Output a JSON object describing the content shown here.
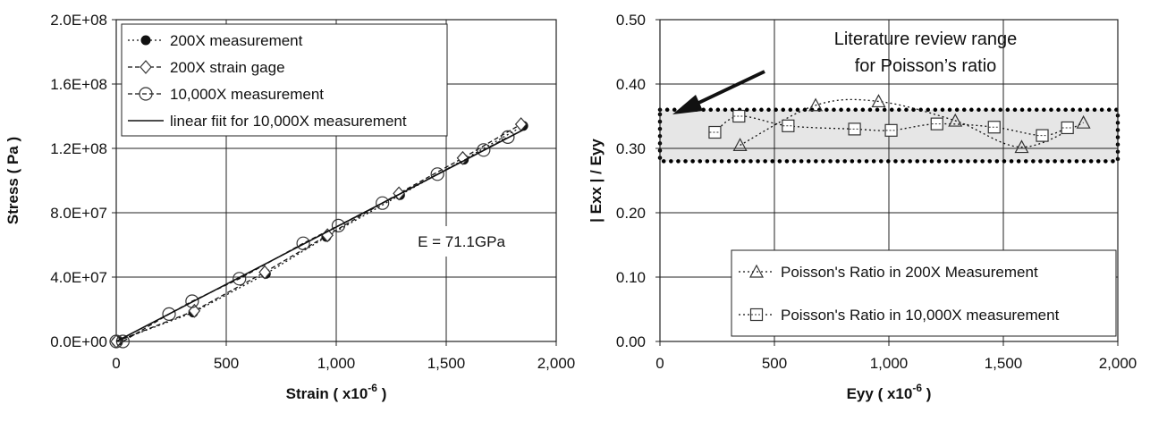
{
  "chart_data": [
    {
      "type": "scatter",
      "xlabel": "Strain ( x10",
      "xlabel_sup": "-6",
      "xlabel_tail": " )",
      "ylabel": "Stress ( Pa )",
      "xlim": [
        0,
        2000
      ],
      "ylim": [
        0,
        200000000
      ],
      "x_ticks": [
        0,
        500,
        1000,
        1500,
        2000
      ],
      "x_tick_labels": [
        "0",
        "500",
        "1,000",
        "1,500",
        "2,000"
      ],
      "y_ticks": [
        0,
        40000000,
        80000000,
        120000000,
        160000000,
        200000000
      ],
      "y_tick_labels": [
        "0.0E+00",
        "4.0E+07",
        "8.0E+07",
        "1.2E+08",
        "1.6E+08",
        "2.0E+08"
      ],
      "grid": true,
      "legend_position": "top-left",
      "annotation": "E = 71.1GPa",
      "series": [
        {
          "name": "200X measurement",
          "marker": "filled-circle",
          "line": "dotted",
          "x": [
            0,
            10,
            350,
            680,
            955,
            1290,
            1580,
            1850
          ],
          "y": [
            0,
            500000,
            18000000,
            42000000,
            65000000,
            91000000,
            113000000,
            134000000
          ]
        },
        {
          "name": "200X strain gage",
          "marker": "diamond",
          "line": "dashed",
          "x": [
            0,
            355,
            675,
            960,
            1285,
            1575,
            1840
          ],
          "y": [
            0,
            19000000,
            43000000,
            66000000,
            92000000,
            114000000,
            135000000
          ]
        },
        {
          "name": "10,000X measurement",
          "marker": "open-circle",
          "line": "dashed",
          "x": [
            0,
            30,
            240,
            345,
            560,
            850,
            1010,
            1210,
            1460,
            1670,
            1780
          ],
          "y": [
            0,
            0,
            17000000,
            25000000,
            39000000,
            61000000,
            72000000,
            86000000,
            104000000,
            119000000,
            127000000
          ]
        },
        {
          "name": "linear fiit for 10,000X measurement",
          "marker": "none",
          "line": "solid",
          "x": [
            0,
            1850
          ],
          "y": [
            0,
            131535000
          ]
        }
      ]
    },
    {
      "type": "scatter",
      "xlabel": "Eyy ( x10",
      "xlabel_sup": "-6",
      "xlabel_tail": " )",
      "ylabel": "| Exx | / Eyy",
      "xlim": [
        0,
        2000
      ],
      "ylim": [
        0,
        0.5
      ],
      "x_ticks": [
        0,
        500,
        1000,
        1500,
        2000
      ],
      "x_tick_labels": [
        "0",
        "500",
        "1,000",
        "1,500",
        "2,000"
      ],
      "y_ticks": [
        0,
        0.1,
        0.2,
        0.3,
        0.4,
        0.5
      ],
      "y_tick_labels": [
        "0.00",
        "0.10",
        "0.20",
        "0.30",
        "0.40",
        "0.50"
      ],
      "grid": true,
      "legend_position": "bottom-right",
      "band": {
        "from": 0.28,
        "to": 0.36,
        "label_lines": [
          "Literature review range",
          "for Poisson’s ratio"
        ]
      },
      "series": [
        {
          "name": "Poisson's Ratio in 200X Measurement",
          "marker": "triangle",
          "line": "dotted-smooth",
          "x": [
            350,
            680,
            955,
            1290,
            1580,
            1850
          ],
          "y": [
            0.305,
            0.367,
            0.373,
            0.343,
            0.302,
            0.34
          ]
        },
        {
          "name": "Poisson's Ratio in 10,000X measurement",
          "marker": "square",
          "line": "dotted-smooth",
          "x": [
            240,
            345,
            560,
            850,
            1010,
            1210,
            1460,
            1670,
            1780
          ],
          "y": [
            0.325,
            0.35,
            0.335,
            0.33,
            0.328,
            0.338,
            0.333,
            0.32,
            0.332
          ]
        }
      ]
    }
  ]
}
